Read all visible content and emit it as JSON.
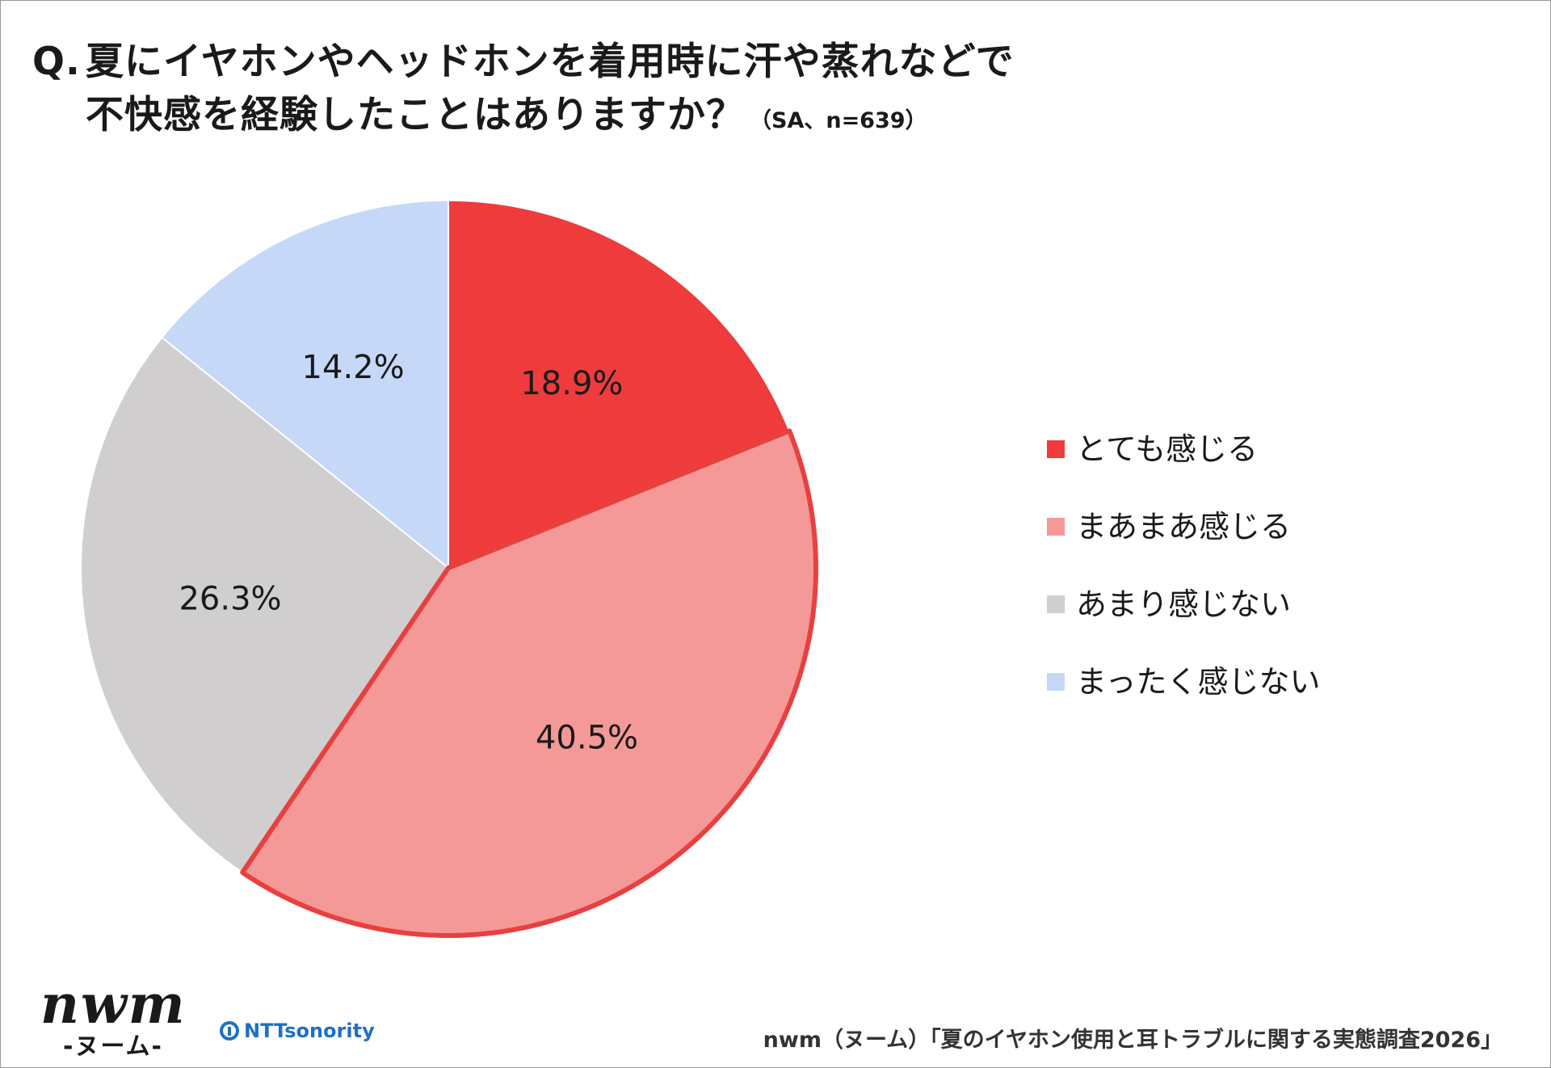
{
  "title": {
    "prefix": "Q.",
    "line1": "夏にイヤホンやヘッドホンを着用時に汗や蒸れなどで",
    "line2": "不快感を経験したことはありますか？",
    "note": "（SA、n=639）"
  },
  "chart_data": {
    "type": "pie",
    "start": "12 o'clock, clockwise",
    "slices": [
      {
        "label": "とても感じる",
        "value": 18.9,
        "display": "18.9%",
        "color": "#ef3b3c"
      },
      {
        "label": "まあまあ感じる",
        "value": 40.5,
        "display": "40.5%",
        "color": "#f59898",
        "outline": "#e8403f"
      },
      {
        "label": "あまり感じない",
        "value": 26.3,
        "display": "26.3%",
        "color": "#d0cece"
      },
      {
        "label": "まったく感じない",
        "value": 14.2,
        "display": "14.2%",
        "color": "#c5d8f7"
      }
    ],
    "legend_position": "right"
  },
  "footer": {
    "logo": "nwm",
    "logo_sub": "-ヌーム-",
    "partner": "NTTsonority",
    "source": "nwm（ヌーム）「夏のイヤホン使用と耳トラブルに関する実態調査2026」"
  }
}
